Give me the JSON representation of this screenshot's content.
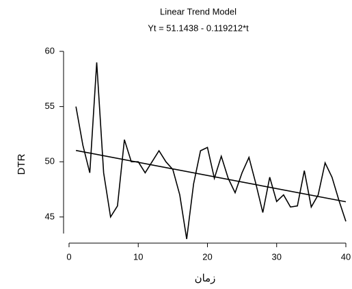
{
  "chart_data": {
    "type": "line",
    "title": "Linear Trend Model",
    "subtitle": "Yt = 51.1438 - 0.119212*t",
    "ylabel": "DTR",
    "xlabel": "زمان",
    "x": [
      1,
      2,
      3,
      4,
      5,
      6,
      7,
      8,
      9,
      10,
      11,
      12,
      13,
      14,
      15,
      16,
      17,
      18,
      19,
      20,
      21,
      22,
      23,
      24,
      25,
      26,
      27,
      28,
      29,
      30,
      31,
      32,
      33,
      34,
      35,
      36,
      37,
      38,
      39,
      40
    ],
    "series": [
      {
        "color": "#000000",
        "values": [
          55,
          51.5,
          49,
          59,
          49,
          45,
          46,
          52,
          50,
          50,
          49,
          50,
          51,
          50,
          49.3,
          47,
          43,
          48,
          51,
          51.3,
          48.5,
          50.5,
          48.5,
          47.2,
          49,
          50.4,
          48,
          45.4,
          48.6,
          46.4,
          47,
          45.9,
          46,
          49.2,
          45.9,
          47,
          49.9,
          48.6,
          46.5,
          44.6
        ]
      },
      {
        "color": "#000000",
        "x": [
          1,
          40
        ],
        "values": [
          51.0246,
          46.3753
        ]
      }
    ],
    "xlim": [
      0,
      40
    ],
    "xticks": [
      0,
      10,
      20,
      30,
      40
    ],
    "ylim": [
      43.5,
      60
    ],
    "yticks": [
      45,
      50,
      55,
      60
    ]
  }
}
